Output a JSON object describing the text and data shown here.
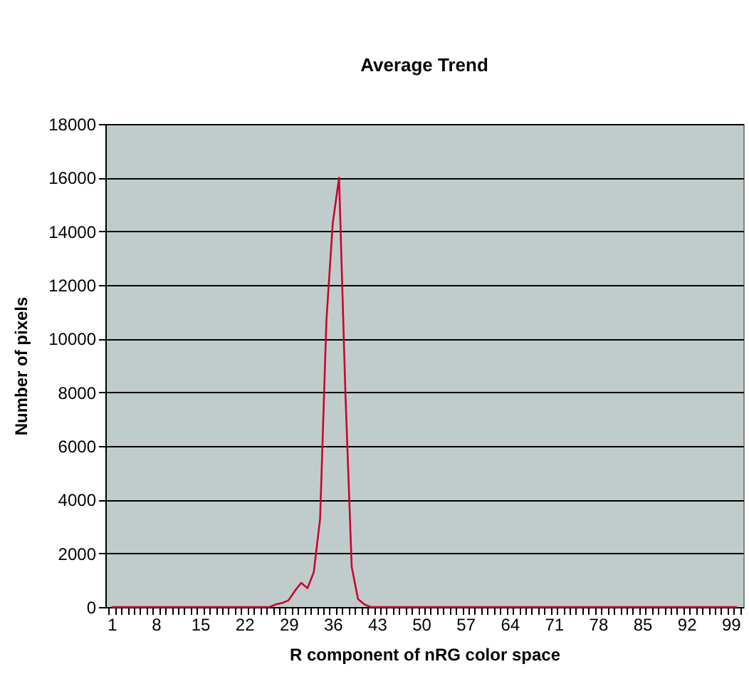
{
  "chart_data": {
    "type": "line",
    "title": "Average Trend",
    "xlabel": "R component of nRG color space",
    "ylabel": "Number of pixels",
    "categories": [
      "1",
      null,
      null,
      null,
      null,
      null,
      null,
      "8",
      null,
      null,
      null,
      null,
      null,
      null,
      "15",
      null,
      null,
      null,
      null,
      null,
      null,
      "22",
      null,
      null,
      null,
      null,
      null,
      null,
      "29",
      null,
      null,
      null,
      null,
      null,
      null,
      "36",
      null,
      null,
      null,
      null,
      null,
      null,
      "43",
      null,
      null,
      null,
      null,
      null,
      null,
      "50",
      null,
      null,
      null,
      null,
      null,
      null,
      "57",
      null,
      null,
      null,
      null,
      null,
      null,
      "64",
      null,
      null,
      null,
      null,
      null,
      null,
      "71",
      null,
      null,
      null,
      null,
      null,
      null,
      "78",
      null,
      null,
      null,
      null,
      null,
      null,
      "85",
      null,
      null,
      null,
      null,
      null,
      null,
      "92",
      null,
      null,
      null,
      null,
      null,
      null,
      "99",
      null
    ],
    "series": [
      {
        "color": "#cc0033",
        "values": [
          0,
          0,
          0,
          0,
          0,
          0,
          0,
          0,
          0,
          0,
          0,
          0,
          0,
          0,
          0,
          0,
          0,
          0,
          0,
          0,
          0,
          0,
          0,
          0,
          0,
          0,
          100,
          150,
          250,
          600,
          900,
          700,
          1300,
          3300,
          10700,
          14300,
          16000,
          8000,
          1500,
          300,
          100,
          0,
          0,
          0,
          0,
          0,
          0,
          0,
          0,
          0,
          0,
          0,
          0,
          0,
          0,
          0,
          0,
          0,
          0,
          0,
          0,
          0,
          0,
          0,
          0,
          0,
          0,
          0,
          0,
          0,
          0,
          0,
          0,
          0,
          0,
          0,
          0,
          0,
          0,
          0,
          0,
          0,
          0,
          0,
          0,
          0,
          0,
          0,
          0,
          0,
          0,
          0,
          0,
          0,
          0,
          0,
          0,
          0,
          0,
          0
        ]
      }
    ],
    "ylim": [
      0,
      18000
    ],
    "yticks": [
      0,
      2000,
      4000,
      6000,
      8000,
      10000,
      12000,
      14000,
      16000,
      18000
    ],
    "grid": "y",
    "marker": "none",
    "line_style": "solid"
  }
}
